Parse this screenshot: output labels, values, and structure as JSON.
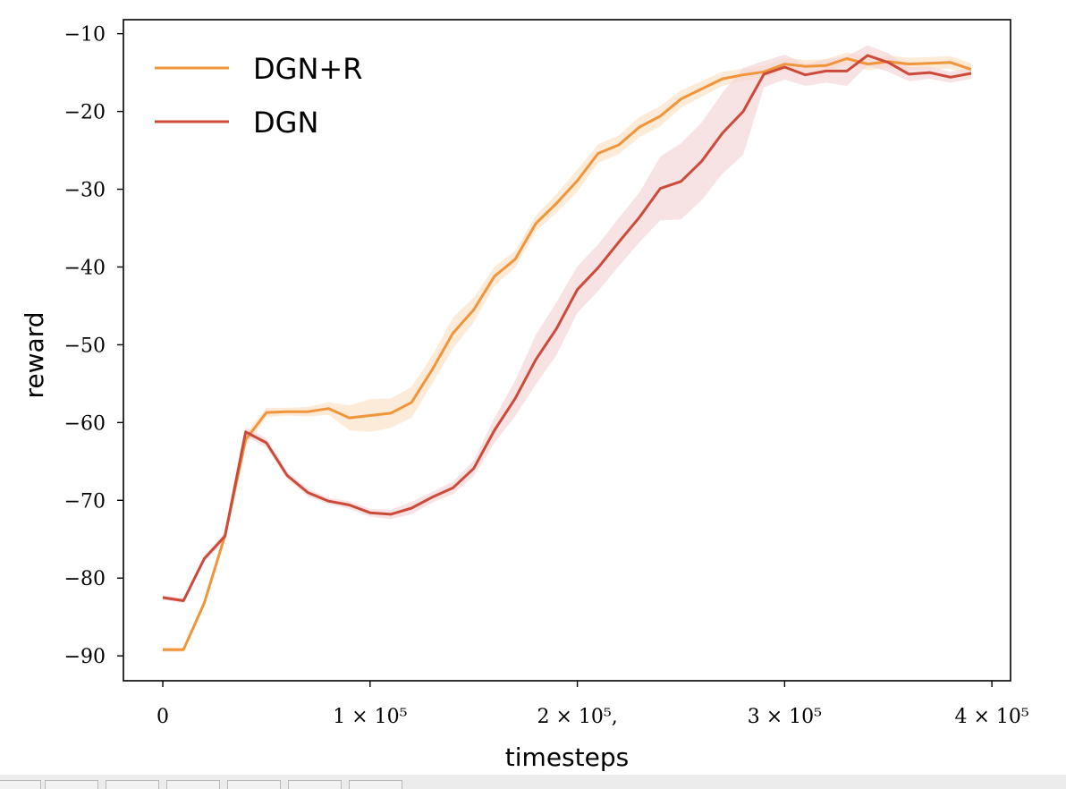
{
  "chart_data": {
    "type": "line",
    "xlabel": "timesteps",
    "ylabel": "reward",
    "xlim": [
      -19000,
      409000
    ],
    "ylim": [
      -93.2,
      -8.2
    ],
    "x_ticks": [
      {
        "value": 0,
        "label": "0"
      },
      {
        "value": 100000,
        "label": "1 × 10⁵"
      },
      {
        "value": 200000,
        "label": "2 × 10⁵,"
      },
      {
        "value": 300000,
        "label": "3 × 10⁵"
      },
      {
        "value": 400000,
        "label": "4 × 10⁵"
      }
    ],
    "y_ticks": [
      {
        "value": -10,
        "label": "−10"
      },
      {
        "value": -20,
        "label": "−20"
      },
      {
        "value": -30,
        "label": "−30"
      },
      {
        "value": -40,
        "label": "−40"
      },
      {
        "value": -50,
        "label": "−50"
      },
      {
        "value": -60,
        "label": "−60"
      },
      {
        "value": -70,
        "label": "−70"
      },
      {
        "value": -80,
        "label": "−80"
      },
      {
        "value": -90,
        "label": "−90"
      }
    ],
    "grid": false,
    "legend_position": "top-left",
    "x": [
      0,
      10000,
      20000,
      30000,
      40000,
      50000,
      60000,
      70000,
      80000,
      90000,
      100000,
      110000,
      120000,
      130000,
      140000,
      150000,
      160000,
      170000,
      180000,
      190000,
      200000,
      210000,
      220000,
      230000,
      240000,
      250000,
      260000,
      270000,
      280000,
      290000,
      300000,
      310000,
      320000,
      330000,
      340000,
      350000,
      360000,
      370000,
      380000,
      390000
    ],
    "series": [
      {
        "name": "DGN+R",
        "color": "#f0953a",
        "band_color": "#fbe3c8",
        "values": [
          -89.2,
          -89.2,
          -83.2,
          -74.5,
          -62.2,
          -58.7,
          -58.6,
          -58.6,
          -58.2,
          -59.4,
          -59.1,
          -58.8,
          -57.4,
          -53.2,
          -48.5,
          -45.5,
          -41.2,
          -39.0,
          -34.4,
          -31.8,
          -28.9,
          -25.4,
          -24.3,
          -22.0,
          -20.6,
          -18.4,
          -17.1,
          -15.8,
          -15.3,
          -14.9,
          -13.9,
          -14.2,
          -14.1,
          -13.2,
          -13.9,
          -13.6,
          -13.9,
          -13.8,
          -13.7,
          -14.6
        ],
        "band": [
          0.3,
          0.3,
          0.5,
          0.6,
          0.8,
          0.6,
          0.5,
          0.6,
          0.8,
          1.6,
          2.1,
          1.9,
          2.0,
          1.8,
          2.0,
          1.6,
          1.2,
          1.1,
          1.0,
          1.2,
          1.4,
          1.2,
          1.2,
          1.3,
          1.3,
          1.1,
          1.0,
          0.9,
          0.8,
          0.8,
          0.8,
          0.8,
          0.8,
          0.8,
          0.8,
          0.8,
          0.8,
          0.8,
          0.8,
          0.8
        ]
      },
      {
        "name": "DGN",
        "color": "#cc4a3a",
        "band_color": "#f5d7d9",
        "values": [
          -82.5,
          -82.9,
          -77.5,
          -74.6,
          -61.2,
          -62.6,
          -66.8,
          -69.0,
          -70.1,
          -70.6,
          -71.6,
          -71.8,
          -71.0,
          -69.6,
          -68.4,
          -65.9,
          -61.0,
          -56.9,
          -51.9,
          -47.9,
          -42.9,
          -40.1,
          -36.8,
          -33.6,
          -29.9,
          -29.0,
          -26.4,
          -22.8,
          -20.0,
          -15.2,
          -14.3,
          -15.3,
          -14.8,
          -14.8,
          -12.8,
          -13.7,
          -15.2,
          -15.0,
          -15.6,
          -15.1
        ],
        "band": [
          0.3,
          0.3,
          0.4,
          0.5,
          0.6,
          0.6,
          0.5,
          0.5,
          0.4,
          0.5,
          0.5,
          0.6,
          0.8,
          0.7,
          0.8,
          1.0,
          1.6,
          2.3,
          3.2,
          3.4,
          3.0,
          3.0,
          3.1,
          3.2,
          4.1,
          4.9,
          5.0,
          5.2,
          5.6,
          1.7,
          1.6,
          1.4,
          1.5,
          1.9,
          1.3,
          1.2,
          0.9,
          0.8,
          0.7,
          0.7
        ]
      }
    ]
  }
}
